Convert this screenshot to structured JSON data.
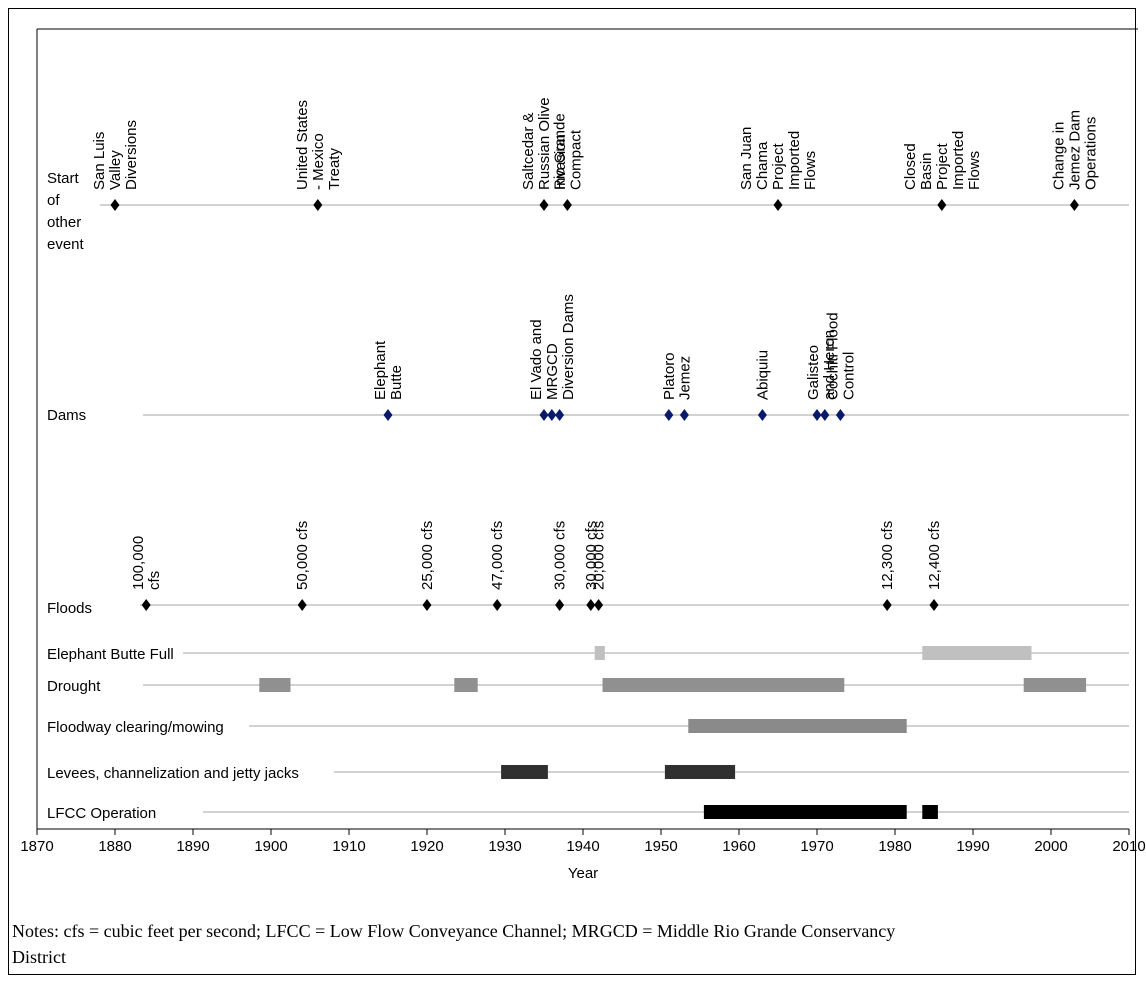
{
  "chart_data": {
    "type": "timeline",
    "xlabel": "Year",
    "xlim": [
      1870,
      2010
    ],
    "xticks": [
      1870,
      1880,
      1890,
      1900,
      1910,
      1920,
      1930,
      1940,
      1950,
      1960,
      1970,
      1980,
      1990,
      2000,
      2010
    ],
    "rows": {
      "other": {
        "label_lines": [
          "Start",
          "of",
          "other",
          "event"
        ]
      },
      "dams": {
        "label": "Dams"
      },
      "floods": {
        "label": "Floods"
      },
      "ebfull": {
        "label": "Elephant Butte Full"
      },
      "drought": {
        "label": "Drought"
      },
      "floodway": {
        "label": "Floodway clearing/mowing"
      },
      "levees": {
        "label": "Levees, channelization and jetty jacks"
      },
      "lfcc": {
        "label": "LFCC Operation"
      }
    },
    "other_events": [
      {
        "year": 1880,
        "label": [
          "San Luis",
          "Valley",
          "Diversions"
        ]
      },
      {
        "year": 1906,
        "label": [
          "United States",
          "- Mexico",
          "Treaty"
        ]
      },
      {
        "year": 1935,
        "label": [
          "Saltcedar &",
          "Russian Olive",
          "Invasion"
        ]
      },
      {
        "year": 1938,
        "label": [
          "Rio Grande",
          "Compact"
        ]
      },
      {
        "year": 1965,
        "label": [
          "San Juan",
          "Chama",
          "Project",
          "Imported",
          "Flows"
        ]
      },
      {
        "year": 1986,
        "label": [
          "Closed",
          "Basin",
          "Project",
          "Imported",
          "Flows"
        ]
      },
      {
        "year": 2003,
        "label": [
          "Change in",
          "Jemez Dam",
          "Operations"
        ]
      }
    ],
    "dams": {
      "points": [
        1915,
        1935,
        1936,
        1937,
        1951,
        1953,
        1963,
        1970,
        1971,
        1973
      ],
      "labels": [
        {
          "label": [
            "Elephant",
            "Butte"
          ]
        },
        {
          "label": [
            "El Vado and",
            "MRGCD",
            "Diversion Dams"
          ]
        },
        {
          "label": [
            "Platoro"
          ]
        },
        {
          "label": [
            "Jemez"
          ]
        },
        {
          "label": [
            "Abiquiu"
          ]
        },
        {
          "label": [
            "Galisteo",
            "and Heron"
          ]
        },
        {
          "label": [
            "Cochiti Flood",
            "Control"
          ]
        }
      ]
    },
    "floods": [
      {
        "year": 1884,
        "label": [
          "100,000",
          "cfs"
        ]
      },
      {
        "year": 1904,
        "label": [
          "50,000 cfs"
        ]
      },
      {
        "year": 1920,
        "label": [
          "25,000 cfs"
        ]
      },
      {
        "year": 1929,
        "label": [
          "47,000 cfs"
        ]
      },
      {
        "year": 1937,
        "label": [
          "30,000 cfs"
        ]
      },
      {
        "year": 1941,
        "label": [
          "30,000 cfs"
        ]
      },
      {
        "year": 1942,
        "label": [
          "20,000 cfs"
        ]
      },
      {
        "year": 1979,
        "label": [
          "12,300 cfs"
        ]
      },
      {
        "year": 1985,
        "label": [
          "12,400 cfs"
        ]
      }
    ],
    "periods": {
      "ebfull": [
        [
          1941.5,
          1942.8
        ],
        [
          1983.5,
          1997.5
        ]
      ],
      "drought": [
        [
          1898.5,
          1902.5
        ],
        [
          1923.5,
          1926.5
        ],
        [
          1942.5,
          1973.5
        ],
        [
          1996.5,
          2004.5
        ]
      ],
      "floodway": [
        [
          1953.5,
          1981.5
        ]
      ],
      "levees": [
        [
          1929.5,
          1935.5
        ],
        [
          1950.5,
          1959.5
        ]
      ],
      "lfcc": [
        [
          1955.5,
          1981.5
        ],
        [
          1983.5,
          1985.5
        ]
      ]
    },
    "colors": {
      "marker": "#000000",
      "dam_marker": "#0a1a6b",
      "ebfull": "#c0c0c0",
      "drought": "#909090",
      "floodway": "#8a8a8a",
      "levees": "#303030",
      "lfcc": "#000000",
      "rule": "#b8b8b8"
    }
  },
  "notes": {
    "line1": "Notes: cfs = cubic feet per second; LFCC = Low Flow Conveyance Channel; MRGCD = Middle Rio Grande Conservancy",
    "line2": "District"
  }
}
